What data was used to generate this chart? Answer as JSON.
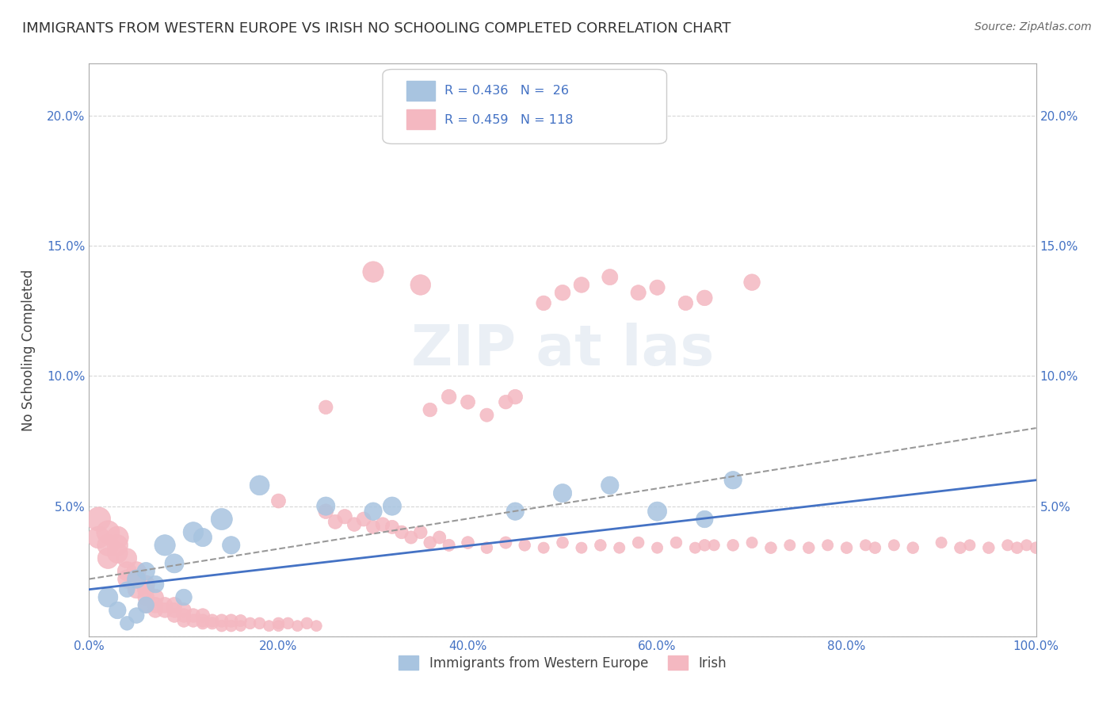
{
  "title": "IMMIGRANTS FROM WESTERN EUROPE VS IRISH NO SCHOOLING COMPLETED CORRELATION CHART",
  "source": "Source: ZipAtlas.com",
  "xlabel": "",
  "ylabel": "No Schooling Completed",
  "watermark": "ZIPat las",
  "blue_R": 0.436,
  "blue_N": 26,
  "pink_R": 0.459,
  "pink_N": 118,
  "blue_color": "#a8c4e0",
  "pink_color": "#f4b8c1",
  "blue_line_color": "#4472c4",
  "pink_line_color": "#f48098",
  "label_color": "#4472c4",
  "title_color": "#333333",
  "background_color": "#ffffff",
  "grid_color": "#cccccc",
  "xlim": [
    0.0,
    1.0
  ],
  "ylim": [
    0.0,
    0.22
  ],
  "xticks": [
    0.0,
    0.2,
    0.4,
    0.6,
    0.8,
    1.0
  ],
  "xtick_labels": [
    "0.0%",
    "20.0%",
    "40.0%",
    "60.0%",
    "80.0%",
    "100.0%"
  ],
  "yticks": [
    0.0,
    0.05,
    0.1,
    0.15,
    0.2
  ],
  "ytick_labels": [
    "",
    "5.0%",
    "10.0%",
    "15.0%",
    "20.0%"
  ],
  "blue_scatter_x": [
    0.02,
    0.03,
    0.04,
    0.04,
    0.05,
    0.05,
    0.06,
    0.06,
    0.07,
    0.08,
    0.09,
    0.1,
    0.11,
    0.12,
    0.14,
    0.15,
    0.18,
    0.25,
    0.3,
    0.32,
    0.45,
    0.5,
    0.55,
    0.6,
    0.65,
    0.68
  ],
  "blue_scatter_y": [
    0.015,
    0.01,
    0.018,
    0.005,
    0.022,
    0.008,
    0.012,
    0.025,
    0.02,
    0.035,
    0.028,
    0.015,
    0.04,
    0.038,
    0.045,
    0.035,
    0.058,
    0.05,
    0.048,
    0.05,
    0.048,
    0.055,
    0.058,
    0.048,
    0.045,
    0.06
  ],
  "blue_scatter_sizes": [
    80,
    60,
    50,
    40,
    70,
    50,
    55,
    65,
    60,
    90,
    75,
    55,
    85,
    70,
    95,
    65,
    80,
    70,
    65,
    70,
    65,
    70,
    65,
    75,
    60,
    65
  ],
  "pink_scatter_x": [
    0.01,
    0.01,
    0.02,
    0.02,
    0.02,
    0.03,
    0.03,
    0.03,
    0.04,
    0.04,
    0.04,
    0.05,
    0.05,
    0.05,
    0.06,
    0.06,
    0.06,
    0.06,
    0.07,
    0.07,
    0.07,
    0.08,
    0.08,
    0.09,
    0.09,
    0.09,
    0.1,
    0.1,
    0.1,
    0.11,
    0.11,
    0.12,
    0.12,
    0.12,
    0.13,
    0.13,
    0.14,
    0.14,
    0.15,
    0.15,
    0.16,
    0.16,
    0.17,
    0.18,
    0.19,
    0.2,
    0.2,
    0.21,
    0.22,
    0.23,
    0.24,
    0.25,
    0.26,
    0.27,
    0.28,
    0.29,
    0.3,
    0.31,
    0.32,
    0.33,
    0.34,
    0.35,
    0.36,
    0.37,
    0.38,
    0.4,
    0.42,
    0.44,
    0.45,
    0.46,
    0.48,
    0.5,
    0.52,
    0.54,
    0.56,
    0.58,
    0.6,
    0.62,
    0.64,
    0.65,
    0.66,
    0.68,
    0.7,
    0.72,
    0.74,
    0.76,
    0.78,
    0.8,
    0.82,
    0.83,
    0.85,
    0.87,
    0.9,
    0.92,
    0.93,
    0.95,
    0.97,
    0.98,
    0.99,
    1.0,
    0.5,
    0.55,
    0.6,
    0.65,
    0.7,
    0.48,
    0.52,
    0.58,
    0.63,
    0.4,
    0.42,
    0.44,
    0.36,
    0.38,
    0.25,
    0.2,
    0.3,
    0.35
  ],
  "pink_scatter_y": [
    0.045,
    0.038,
    0.04,
    0.035,
    0.03,
    0.038,
    0.035,
    0.032,
    0.03,
    0.025,
    0.022,
    0.025,
    0.022,
    0.018,
    0.02,
    0.018,
    0.015,
    0.012,
    0.015,
    0.012,
    0.01,
    0.012,
    0.01,
    0.012,
    0.01,
    0.008,
    0.01,
    0.008,
    0.006,
    0.008,
    0.006,
    0.008,
    0.006,
    0.005,
    0.006,
    0.005,
    0.006,
    0.004,
    0.006,
    0.004,
    0.006,
    0.004,
    0.005,
    0.005,
    0.004,
    0.005,
    0.004,
    0.005,
    0.004,
    0.005,
    0.004,
    0.048,
    0.044,
    0.046,
    0.043,
    0.045,
    0.042,
    0.043,
    0.042,
    0.04,
    0.038,
    0.04,
    0.036,
    0.038,
    0.035,
    0.036,
    0.034,
    0.036,
    0.092,
    0.035,
    0.034,
    0.036,
    0.034,
    0.035,
    0.034,
    0.036,
    0.034,
    0.036,
    0.034,
    0.035,
    0.035,
    0.035,
    0.036,
    0.034,
    0.035,
    0.034,
    0.035,
    0.034,
    0.035,
    0.034,
    0.035,
    0.034,
    0.036,
    0.034,
    0.035,
    0.034,
    0.035,
    0.034,
    0.035,
    0.034,
    0.132,
    0.138,
    0.134,
    0.13,
    0.136,
    0.128,
    0.135,
    0.132,
    0.128,
    0.09,
    0.085,
    0.09,
    0.087,
    0.092,
    0.088,
    0.052,
    0.14,
    0.135
  ],
  "pink_scatter_sizes": [
    120,
    100,
    110,
    95,
    90,
    100,
    90,
    85,
    80,
    75,
    70,
    75,
    70,
    65,
    65,
    60,
    55,
    50,
    55,
    50,
    45,
    50,
    45,
    50,
    45,
    40,
    45,
    40,
    35,
    40,
    35,
    40,
    35,
    30,
    35,
    30,
    35,
    28,
    35,
    28,
    30,
    25,
    28,
    28,
    25,
    28,
    25,
    28,
    25,
    28,
    25,
    45,
    42,
    44,
    40,
    42,
    38,
    40,
    38,
    36,
    34,
    36,
    32,
    34,
    30,
    32,
    28,
    30,
    45,
    28,
    26,
    28,
    26,
    28,
    26,
    28,
    26,
    28,
    26,
    28,
    26,
    28,
    26,
    28,
    26,
    28,
    26,
    28,
    26,
    28,
    26,
    28,
    26,
    28,
    26,
    28,
    26,
    28,
    26,
    28,
    50,
    52,
    48,
    50,
    55,
    45,
    50,
    48,
    44,
    42,
    38,
    40,
    40,
    45,
    40,
    42,
    90,
    85
  ],
  "blue_trend_x": [
    0.0,
    1.0
  ],
  "blue_trend_y": [
    0.018,
    0.06
  ],
  "pink_trend_x": [
    0.0,
    1.0
  ],
  "pink_trend_y": [
    0.022,
    0.08
  ],
  "legend_blue_label": "Immigrants from Western Europe",
  "legend_pink_label": "Irish"
}
